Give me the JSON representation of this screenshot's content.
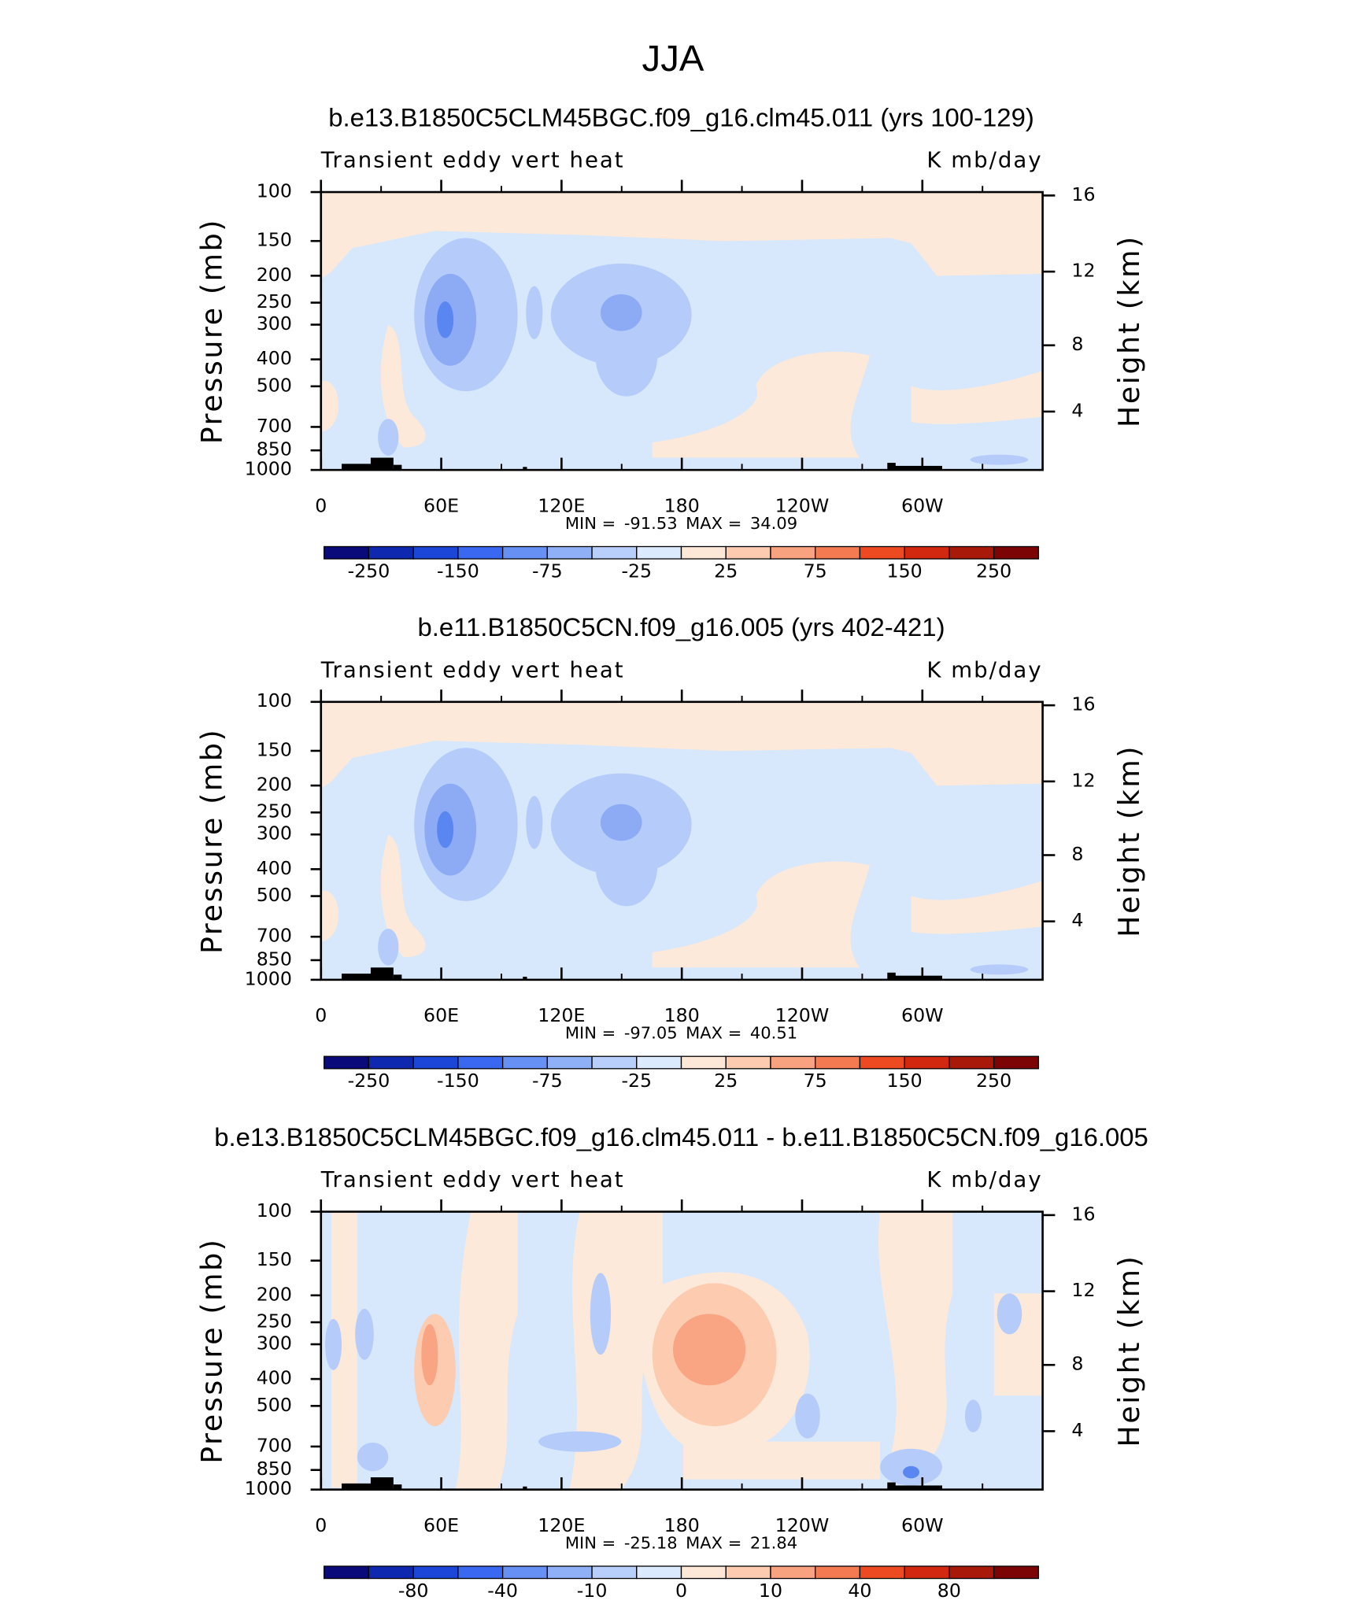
{
  "title": "JJA",
  "chart_data": [
    {
      "type": "contour",
      "title": "b.e13.B1850C5CLM45BGC.f09_g16.clm45.011 (yrs 100-129)",
      "left_label": "Transient eddy vert heat",
      "right_label": "K mb/day",
      "ylabel": "Pressure (mb)",
      "y2label": "Height (km)",
      "xlim": [
        0,
        360
      ],
      "xticks": [
        0,
        {
          "value": 60,
          "label": "60E"
        },
        {
          "value": 120,
          "label": "120E"
        },
        180,
        {
          "value": 240,
          "label": "120W"
        },
        {
          "value": 300,
          "label": "60W"
        }
      ],
      "ylim": [
        1000,
        100
      ],
      "log_scale": true,
      "yticks": [
        100,
        150,
        200,
        250,
        300,
        400,
        500,
        700,
        850,
        1000
      ],
      "y2ticks": [
        4,
        8,
        12,
        16
      ],
      "min_label": "MIN =",
      "min": -91.53,
      "max_label": "MAX =",
      "max": 34.09,
      "colorbar_levels": [
        -250,
        null,
        -150,
        null,
        -75,
        null,
        -25,
        null,
        25,
        null,
        75,
        null,
        150,
        null,
        250
      ],
      "colorbar_colors": [
        "#0a0a7a",
        "#0f28b0",
        "#1c46d8",
        "#3a68f0",
        "#6690f4",
        "#8fb0f6",
        "#b7cffa",
        "#dbeafd",
        "#fde8d8",
        "#fccbb0",
        "#f9a27f",
        "#f47a52",
        "#ee4a22",
        "#d2280f",
        "#a8190a",
        "#7d0404"
      ]
    },
    {
      "type": "contour",
      "title": "b.e11.B1850C5CN.f09_g16.005 (yrs 402-421)",
      "left_label": "Transient eddy vert heat",
      "right_label": "K mb/day",
      "ylabel": "Pressure (mb)",
      "y2label": "Height (km)",
      "xlim": [
        0,
        360
      ],
      "xticks": [
        0,
        {
          "value": 60,
          "label": "60E"
        },
        {
          "value": 120,
          "label": "120E"
        },
        180,
        {
          "value": 240,
          "label": "120W"
        },
        {
          "value": 300,
          "label": "60W"
        }
      ],
      "ylim": [
        1000,
        100
      ],
      "log_scale": true,
      "yticks": [
        100,
        150,
        200,
        250,
        300,
        400,
        500,
        700,
        850,
        1000
      ],
      "y2ticks": [
        4,
        8,
        12,
        16
      ],
      "min_label": "MIN =",
      "min": -97.05,
      "max_label": "MAX =",
      "max": 40.51,
      "colorbar_levels": [
        -250,
        null,
        -150,
        null,
        -75,
        null,
        -25,
        null,
        25,
        null,
        75,
        null,
        150,
        null,
        250
      ],
      "colorbar_colors": [
        "#0a0a7a",
        "#0f28b0",
        "#1c46d8",
        "#3a68f0",
        "#6690f4",
        "#8fb0f6",
        "#b7cffa",
        "#dbeafd",
        "#fde8d8",
        "#fccbb0",
        "#f9a27f",
        "#f47a52",
        "#ee4a22",
        "#d2280f",
        "#a8190a",
        "#7d0404"
      ]
    },
    {
      "type": "contour",
      "title": "b.e13.B1850C5CLM45BGC.f09_g16.clm45.011 - b.e11.B1850C5CN.f09_g16.005",
      "left_label": "Transient eddy vert heat",
      "right_label": "K mb/day",
      "ylabel": "Pressure (mb)",
      "y2label": "Height (km)",
      "xlim": [
        0,
        360
      ],
      "xticks": [
        0,
        {
          "value": 60,
          "label": "60E"
        },
        {
          "value": 120,
          "label": "120E"
        },
        180,
        {
          "value": 240,
          "label": "120W"
        },
        {
          "value": 300,
          "label": "60W"
        }
      ],
      "ylim": [
        1000,
        100
      ],
      "log_scale": true,
      "yticks": [
        100,
        150,
        200,
        250,
        300,
        400,
        500,
        700,
        850,
        1000
      ],
      "y2ticks": [
        4,
        8,
        12,
        16
      ],
      "min_label": "MIN =",
      "min": -25.18,
      "max_label": "MAX =",
      "max": 21.84,
      "colorbar_levels": [
        null,
        -80,
        null,
        -40,
        null,
        -10,
        null,
        0,
        null,
        10,
        null,
        40,
        null,
        80,
        null
      ],
      "colorbar_colors": [
        "#0a0a7a",
        "#0f28b0",
        "#1c46d8",
        "#3a68f0",
        "#6690f4",
        "#8fb0f6",
        "#b7cffa",
        "#dbeafd",
        "#fde8d8",
        "#fccbb0",
        "#f9a27f",
        "#f47a52",
        "#ee4a22",
        "#d2280f",
        "#a8190a",
        "#7d0404"
      ]
    }
  ]
}
